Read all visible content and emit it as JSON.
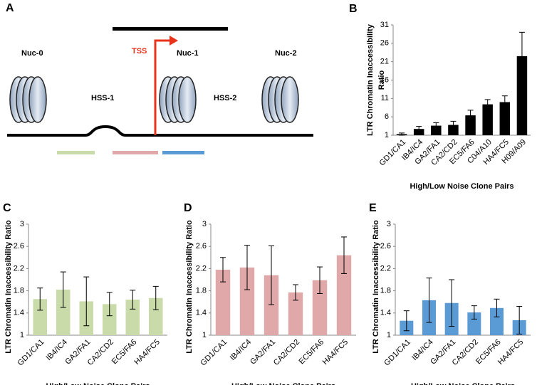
{
  "diagram": {
    "panel_label": "A",
    "tss": "TSS",
    "nucleosomes": [
      "Nuc-0",
      "Nuc-1",
      "Nuc-2"
    ],
    "hss": [
      "HSS-1",
      "HSS-2"
    ]
  },
  "chart_data": [
    {
      "type": "bar",
      "panel_label": "B",
      "ylabel": [
        "LTR Chromatin Inaccessibility",
        "Ratio"
      ],
      "xlabel": "High/Low Noise Clone Pairs",
      "categories": [
        "GD1/CA1",
        "IB4/IC4",
        "GA2/FA1",
        "CA2/CD2",
        "EC5/FA6",
        "C04/A10",
        "HA4/FC5",
        "H09/A09"
      ],
      "values": [
        1.3,
        2.7,
        3.6,
        3.8,
        6.4,
        9.4,
        10.0,
        22.5
      ],
      "errors": [
        0.3,
        0.7,
        0.8,
        1.0,
        1.4,
        1.3,
        1.7,
        6.5
      ],
      "color": "#000000",
      "ylim": [
        1,
        31
      ],
      "yticks": [
        1,
        6,
        11,
        16,
        21,
        26,
        31
      ]
    },
    {
      "type": "bar",
      "panel_label": "C",
      "ylabel": "LTR Chromatin Inaccessibility Ratio",
      "xlabel": "High/Low Noise Clone Pairs",
      "categories": [
        "GD1/CA1",
        "IB4/IC4",
        "GA2/FA1",
        "CA2/CD2",
        "EC5/FA6",
        "HA4/FC5"
      ],
      "values": [
        1.65,
        1.82,
        1.61,
        1.56,
        1.64,
        1.67
      ],
      "errors": [
        0.2,
        0.32,
        0.44,
        0.21,
        0.17,
        0.21
      ],
      "color": "#c9dba8",
      "ylim": [
        1,
        3
      ],
      "yticks": [
        1,
        1.4,
        1.8,
        2.2,
        2.6,
        3
      ]
    },
    {
      "type": "bar",
      "panel_label": "D",
      "ylabel": "LTR Chromatin Inaccessibility Ratio",
      "xlabel": "High/Low Noise Clone Pairs",
      "categories": [
        "GD1/CA1",
        "IB4/IC4",
        "GA2/FA1",
        "CA2/CD2",
        "EC5/FA6",
        "HA4/FC5"
      ],
      "values": [
        2.18,
        2.22,
        2.08,
        1.77,
        1.99,
        2.44
      ],
      "errors": [
        0.22,
        0.4,
        0.53,
        0.14,
        0.24,
        0.33
      ],
      "color": "#e0a8a8",
      "ylim": [
        1,
        3
      ],
      "yticks": [
        1,
        1.4,
        1.8,
        2.2,
        2.6,
        3
      ]
    },
    {
      "type": "bar",
      "panel_label": "E",
      "ylabel": "LTR Chromatin Inaccessibility Ratio",
      "xlabel": "High/Low Noise Clone Pairs",
      "categories": [
        "GD1/CA1",
        "IB4/IC4",
        "GA2/FA1",
        "CA2/CD2",
        "EC5/FA6",
        "HA4/FC5"
      ],
      "values": [
        1.26,
        1.63,
        1.58,
        1.41,
        1.49,
        1.27
      ],
      "errors": [
        0.18,
        0.4,
        0.42,
        0.12,
        0.16,
        0.25
      ],
      "color": "#5b9bd5",
      "ylim": [
        1,
        3
      ],
      "yticks": [
        1,
        1.4,
        1.8,
        2.2,
        2.6,
        3
      ]
    }
  ]
}
